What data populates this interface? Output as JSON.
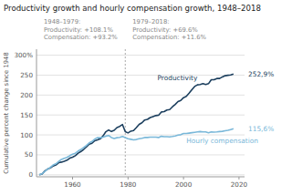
{
  "chart_data": {
    "type": "line",
    "title": "Productivity growth and hourly compensation growth, 1948–2018",
    "ylabel": "Cumulative percent change since 1948",
    "annotations": [
      [
        "1948–1979:",
        "Productivity: +108.1%",
        "Compensation: +93.2%"
      ],
      [
        "1979–2018:",
        "Productivity: +69.6%",
        "Compensation: +11.6%"
      ]
    ],
    "divider_x": 1979,
    "xlim": [
      1947,
      2022
    ],
    "ylim": [
      -5,
      315
    ],
    "xticks": [
      1960,
      1980,
      2000,
      2020
    ],
    "yticks": [
      0,
      50,
      100,
      150,
      200,
      250,
      {
        "value": 300,
        "label": "300%"
      }
    ],
    "grid": true,
    "x": [
      1948,
      1949,
      1950,
      1951,
      1952,
      1953,
      1954,
      1955,
      1956,
      1957,
      1958,
      1959,
      1960,
      1961,
      1962,
      1963,
      1964,
      1965,
      1966,
      1967,
      1968,
      1969,
      1970,
      1971,
      1972,
      1973,
      1974,
      1975,
      1976,
      1977,
      1978,
      1979,
      1980,
      1981,
      1982,
      1983,
      1984,
      1985,
      1986,
      1987,
      1988,
      1989,
      1990,
      1991,
      1992,
      1993,
      1994,
      1995,
      1996,
      1997,
      1998,
      1999,
      2000,
      2001,
      2002,
      2003,
      2004,
      2005,
      2006,
      2007,
      2008,
      2009,
      2010,
      2011,
      2012,
      2013,
      2014,
      2015,
      2016,
      2017,
      2018
    ],
    "series": [
      {
        "name": "Productivity",
        "color": "#1c3f5e",
        "end_label": "252,9%",
        "values": [
          0,
          1.8,
          9.5,
          14.2,
          17.3,
          22.1,
          24.7,
          30.4,
          31.8,
          34.0,
          36.5,
          41.6,
          44.0,
          47.8,
          54.0,
          58.4,
          63.5,
          69.8,
          76.8,
          79.2,
          85.5,
          87.5,
          90.2,
          97.5,
          108.0,
          112.5,
          108.5,
          111.5,
          118.5,
          121.5,
          126.0,
          108.1,
          105.0,
          109.5,
          111.0,
          118.5,
          126.5,
          130.5,
          137.5,
          139.0,
          143.5,
          146.0,
          148.5,
          149.5,
          157.5,
          158.5,
          162.5,
          163.5,
          170.5,
          176.5,
          183.5,
          186.5,
          193.5,
          196.5,
          204.5,
          213.5,
          221.5,
          225.5,
          226.5,
          228.5,
          226.5,
          228.5,
          238.5,
          238.5,
          241.5,
          241.5,
          245.5,
          248.5,
          249.5,
          250.5,
          252.9
        ]
      },
      {
        "name": "Hourly compensation",
        "color": "#7ab8d9",
        "end_label": "115,6%",
        "values": [
          0,
          2.5,
          8.5,
          14.0,
          18.5,
          24.5,
          27.5,
          33.5,
          38.5,
          41.5,
          43.5,
          48.0,
          51.5,
          54.0,
          59.5,
          63.5,
          68.5,
          73.5,
          80.0,
          83.5,
          89.5,
          93.2,
          93.0,
          94.5,
          97.0,
          98.5,
          93.5,
          91.0,
          93.0,
          94.0,
          96.0,
          93.2,
          90.5,
          89.0,
          87.5,
          88.5,
          90.5,
          91.5,
          93.5,
          93.5,
          94.5,
          94.5,
          94.5,
          93.5,
          96.5,
          95.5,
          95.5,
          95.0,
          96.0,
          97.5,
          99.5,
          100.5,
          103.5,
          103.5,
          104.5,
          105.5,
          106.5,
          107.5,
          108.5,
          107.5,
          107.5,
          105.5,
          107.5,
          107.0,
          107.5,
          108.5,
          109.0,
          110.5,
          111.5,
          113.5,
          115.6
        ]
      }
    ]
  }
}
